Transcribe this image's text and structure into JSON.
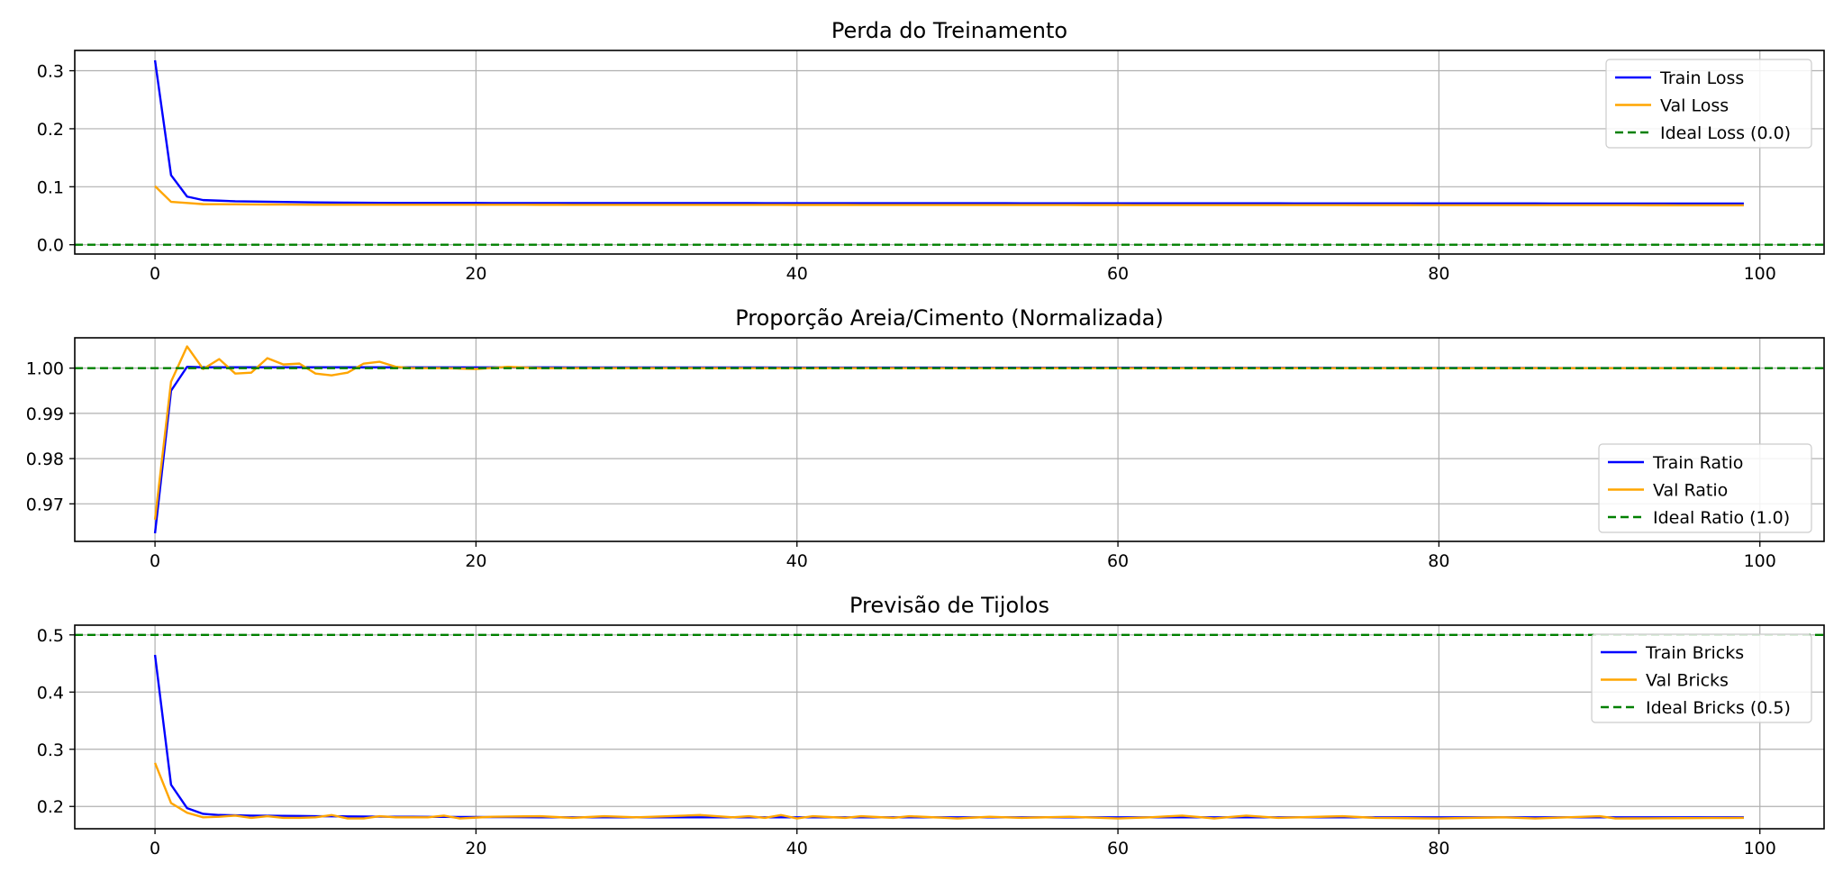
{
  "chart_data": [
    {
      "type": "line",
      "title": "Perda do Treinamento",
      "xlim": [
        -5,
        104
      ],
      "ylim": [
        -0.016,
        0.335
      ],
      "xticks": [
        0,
        20,
        40,
        60,
        80,
        100
      ],
      "yticks": [
        0.0,
        0.1,
        0.2,
        0.3
      ],
      "ytick_labels": [
        "0.0",
        "0.1",
        "0.2",
        "0.3"
      ],
      "grid": true,
      "legend_position": "top-right",
      "series": [
        {
          "name": "Train Loss",
          "color": "#0000ff",
          "style": "solid",
          "anchors": [
            [
              0,
              0.318
            ],
            [
              1,
              0.12
            ],
            [
              2,
              0.083
            ],
            [
              3,
              0.077
            ],
            [
              5,
              0.075
            ],
            [
              10,
              0.073
            ],
            [
              15,
              0.072
            ],
            [
              99,
              0.071
            ]
          ]
        },
        {
          "name": "Val Loss",
          "color": "#ffa500",
          "style": "solid",
          "anchors": [
            [
              0,
              0.101
            ],
            [
              1,
              0.074
            ],
            [
              2,
              0.072
            ],
            [
              3,
              0.07
            ],
            [
              10,
              0.069
            ],
            [
              99,
              0.068
            ]
          ]
        },
        {
          "name": "Ideal Loss (0.0)",
          "color": "#008000",
          "style": "dashed",
          "hline": 0.0
        }
      ]
    },
    {
      "type": "line",
      "title": "Proporção Areia/Cimento (Normalizada)",
      "xlim": [
        -5,
        104
      ],
      "ylim": [
        0.9617,
        1.0067
      ],
      "xticks": [
        0,
        20,
        40,
        60,
        80,
        100
      ],
      "yticks": [
        0.97,
        0.98,
        0.99,
        1.0
      ],
      "ytick_labels": [
        "0.97",
        "0.98",
        "0.99",
        "1.00"
      ],
      "grid": true,
      "legend_position": "lower-right",
      "series": [
        {
          "name": "Train Ratio",
          "color": "#0000ff",
          "style": "solid",
          "anchors": [
            [
              0,
              0.9635
            ],
            [
              1,
              0.995
            ],
            [
              2,
              1.0003
            ],
            [
              3,
              1.0002
            ],
            [
              99,
              1.0
            ]
          ]
        },
        {
          "name": "Val Ratio",
          "color": "#ffa500",
          "style": "solid",
          "anchors": [
            [
              0,
              0.9665
            ],
            [
              1,
              0.997
            ],
            [
              2,
              1.0048
            ],
            [
              3,
              0.9998
            ],
            [
              4,
              1.002
            ],
            [
              5,
              0.9988
            ],
            [
              6,
              0.999
            ],
            [
              7,
              1.0022
            ],
            [
              8,
              1.0008
            ],
            [
              9,
              1.001
            ],
            [
              10,
              0.9988
            ],
            [
              11,
              0.9984
            ],
            [
              12,
              0.999
            ],
            [
              13,
              1.001
            ],
            [
              14,
              1.0014
            ],
            [
              15,
              1.0003
            ],
            [
              16,
              1.0
            ],
            [
              18,
              1.0
            ],
            [
              20,
              0.9998
            ],
            [
              22,
              1.0003
            ],
            [
              24,
              1.0
            ],
            [
              99,
              1.0
            ]
          ]
        },
        {
          "name": "Ideal Ratio (1.0)",
          "color": "#008000",
          "style": "dashed",
          "hline": 1.0
        }
      ]
    },
    {
      "type": "line",
      "title": "Previsão de Tijolos",
      "xlim": [
        -5,
        104
      ],
      "ylim": [
        0.161,
        0.517
      ],
      "xticks": [
        0,
        20,
        40,
        60,
        80,
        100
      ],
      "yticks": [
        0.2,
        0.3,
        0.4,
        0.5
      ],
      "ytick_labels": [
        "0.2",
        "0.3",
        "0.4",
        "0.5"
      ],
      "grid": true,
      "legend_position": "top-right",
      "series": [
        {
          "name": "Train Bricks",
          "color": "#0000ff",
          "style": "solid",
          "anchors": [
            [
              0,
              0.465
            ],
            [
              1,
              0.238
            ],
            [
              2,
              0.197
            ],
            [
              3,
              0.187
            ],
            [
              4,
              0.185
            ],
            [
              6,
              0.184
            ],
            [
              10,
              0.183
            ],
            [
              15,
              0.182
            ],
            [
              25,
              0.181
            ],
            [
              99,
              0.181
            ]
          ]
        },
        {
          "name": "Val Bricks",
          "color": "#ffa500",
          "style": "solid",
          "anchors": [
            [
              0,
              0.276
            ],
            [
              1,
              0.206
            ],
            [
              2,
              0.189
            ],
            [
              3,
              0.181
            ],
            [
              4,
              0.182
            ],
            [
              5,
              0.184
            ],
            [
              6,
              0.18
            ],
            [
              7,
              0.183
            ],
            [
              8,
              0.18
            ],
            [
              9,
              0.18
            ],
            [
              10,
              0.181
            ],
            [
              11,
              0.185
            ],
            [
              12,
              0.179
            ],
            [
              13,
              0.179
            ],
            [
              14,
              0.183
            ],
            [
              15,
              0.181
            ],
            [
              17,
              0.181
            ],
            [
              18,
              0.184
            ],
            [
              19,
              0.179
            ],
            [
              21,
              0.182
            ],
            [
              24,
              0.183
            ],
            [
              26,
              0.18
            ],
            [
              28,
              0.183
            ],
            [
              30,
              0.181
            ],
            [
              34,
              0.185
            ],
            [
              36,
              0.181
            ],
            [
              37,
              0.183
            ],
            [
              38,
              0.18
            ],
            [
              39,
              0.185
            ],
            [
              40,
              0.179
            ],
            [
              41,
              0.183
            ],
            [
              43,
              0.18
            ],
            [
              44,
              0.183
            ],
            [
              46,
              0.18
            ],
            [
              47,
              0.183
            ],
            [
              50,
              0.179
            ],
            [
              52,
              0.182
            ],
            [
              54,
              0.18
            ],
            [
              57,
              0.182
            ],
            [
              60,
              0.179
            ],
            [
              62,
              0.181
            ],
            [
              64,
              0.184
            ],
            [
              66,
              0.179
            ],
            [
              68,
              0.184
            ],
            [
              70,
              0.18
            ],
            [
              74,
              0.183
            ],
            [
              76,
              0.18
            ],
            [
              80,
              0.179
            ],
            [
              84,
              0.181
            ],
            [
              86,
              0.179
            ],
            [
              90,
              0.183
            ],
            [
              91,
              0.179
            ],
            [
              99,
              0.18
            ]
          ]
        },
        {
          "name": "Ideal Bricks (0.5)",
          "color": "#008000",
          "style": "dashed",
          "hline": 0.5
        }
      ]
    }
  ]
}
